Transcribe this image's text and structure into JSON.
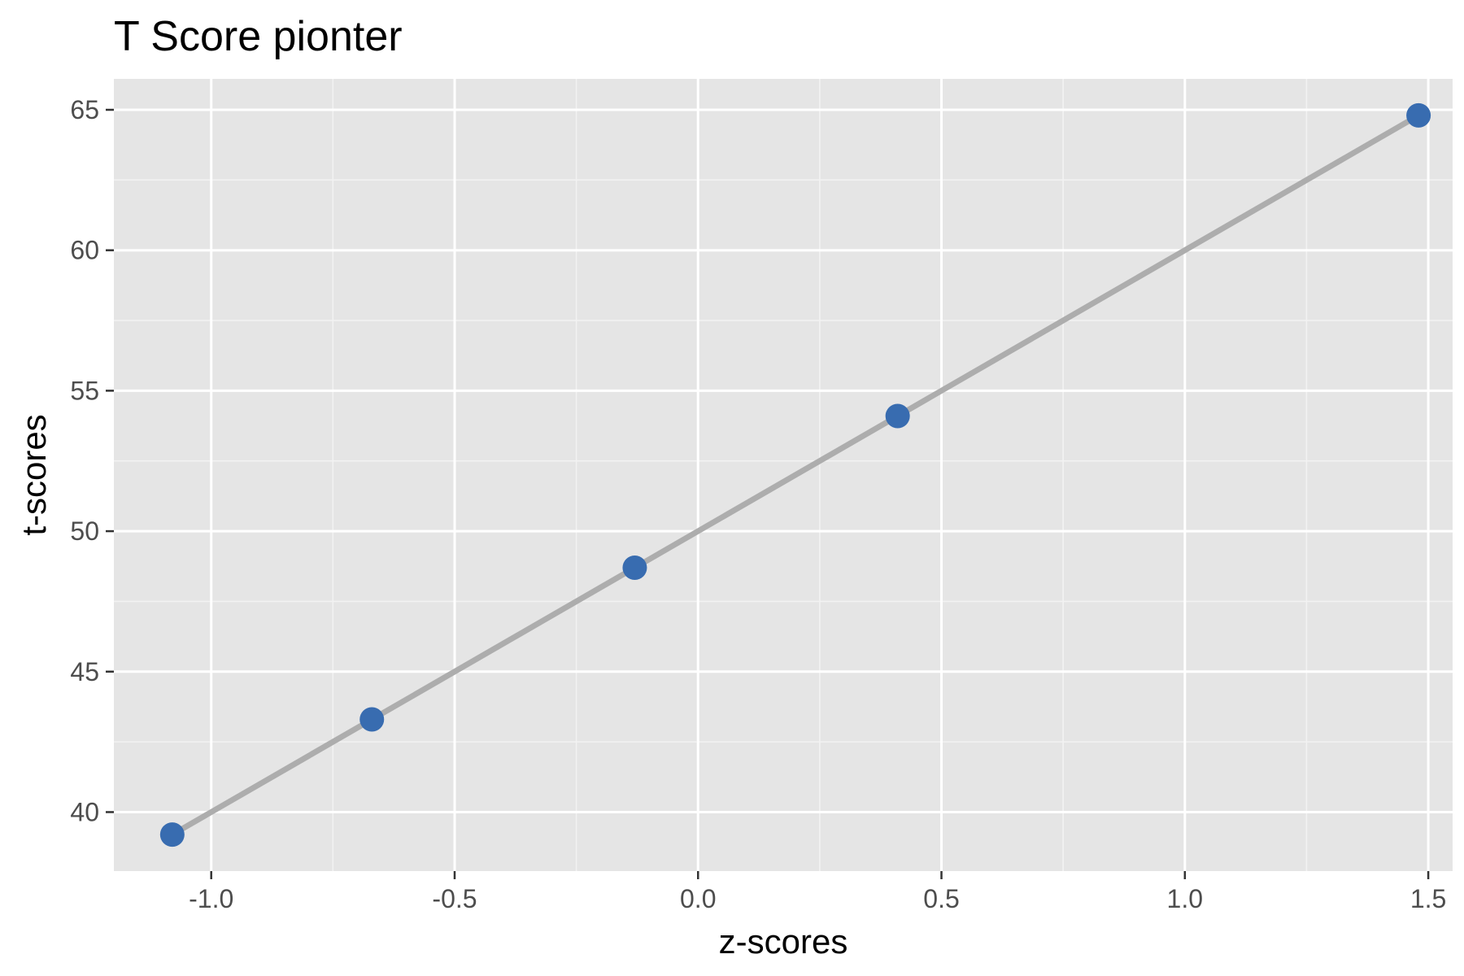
{
  "chart_data": {
    "type": "scatter",
    "title": "T Score pionter",
    "xlabel": "z-scores",
    "ylabel": "t-scores",
    "xlim": [
      -1.2,
      1.55
    ],
    "ylim": [
      37.9,
      66.1
    ],
    "x_ticks": [
      -1.0,
      -0.5,
      0.0,
      0.5,
      1.0,
      1.5
    ],
    "x_tick_labels": [
      "-1.0",
      "-0.5",
      "0.0",
      "0.5",
      "1.0",
      "1.5"
    ],
    "x_minor_ticks": [
      -0.75,
      -0.25,
      0.25,
      0.75,
      1.25
    ],
    "y_ticks": [
      40,
      45,
      50,
      55,
      60,
      65
    ],
    "y_tick_labels": [
      "40",
      "45",
      "50",
      "55",
      "60",
      "65"
    ],
    "y_minor_ticks": [
      42.5,
      47.5,
      52.5,
      57.5,
      62.5
    ],
    "grid": true,
    "series": [
      {
        "x": [
          -1.08,
          -0.67,
          -0.13,
          0.41,
          1.48
        ],
        "y": [
          39.2,
          43.3,
          48.7,
          54.1,
          64.8
        ]
      }
    ],
    "trend_line": {
      "x": [
        -1.08,
        1.48
      ],
      "y": [
        39.2,
        64.8
      ]
    },
    "colors": {
      "panel_background": "#e5e5e5",
      "grid_major": "#ffffff",
      "grid_minor": "#f2f2f2",
      "point": "#386cb0",
      "trend_line": "#adadad",
      "tick_mark": "#333333"
    }
  }
}
